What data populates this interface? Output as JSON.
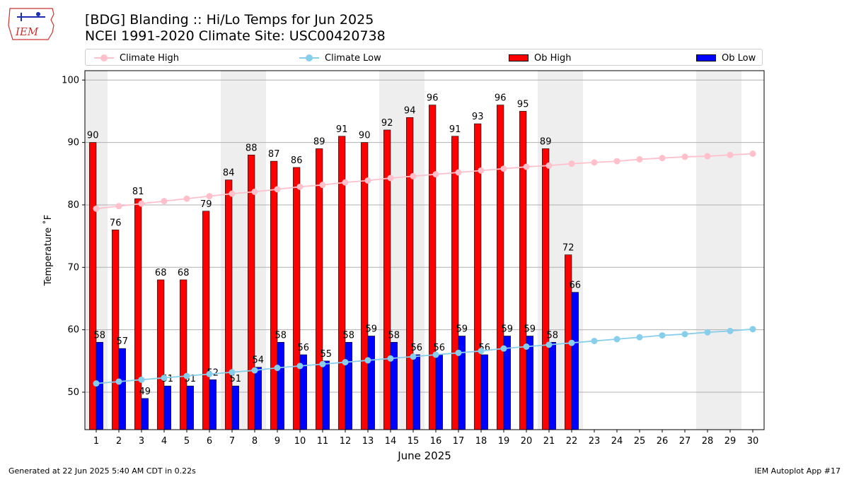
{
  "header": {
    "logo_text": "IEM",
    "title_line1": "[BDG] Blanding :: Hi/Lo Temps for Jun 2025",
    "title_line2": "NCEI 1991-2020 Climate Site: USC00420738"
  },
  "legend": {
    "climate_high": "Climate High",
    "climate_low": "Climate Low",
    "ob_high": "Ob High",
    "ob_low": "Ob Low"
  },
  "colors": {
    "ob_high": "#ff0000",
    "ob_low": "#0000ff",
    "climate_high": "#ffc0cb",
    "climate_low": "#87ceeb",
    "weekend_band": "#eeeeee",
    "grid": "#b0b0b0"
  },
  "chart_data": {
    "type": "bar",
    "xlabel": "June 2025",
    "ylabel": "Temperature ˚F",
    "ylim": [
      44,
      101.5
    ],
    "yticks": [
      50,
      60,
      70,
      80,
      90,
      100
    ],
    "grid": "horizontal",
    "legend_placement": "top",
    "categories": [
      "1",
      "2",
      "3",
      "4",
      "5",
      "6",
      "7",
      "8",
      "9",
      "10",
      "11",
      "12",
      "13",
      "14",
      "15",
      "16",
      "17",
      "18",
      "19",
      "20",
      "21",
      "22",
      "23",
      "24",
      "25",
      "26",
      "27",
      "28",
      "29",
      "30"
    ],
    "weekend_days": [
      1,
      7,
      8,
      14,
      15,
      21,
      22,
      28,
      29
    ],
    "series": [
      {
        "name": "Ob High",
        "kind": "bar",
        "values": [
          90,
          76,
          81,
          68,
          68,
          79,
          84,
          88,
          87,
          86,
          89,
          91,
          90,
          92,
          94,
          96,
          91,
          93,
          96,
          95,
          89,
          72,
          null,
          null,
          null,
          null,
          null,
          null,
          null,
          null
        ]
      },
      {
        "name": "Ob Low",
        "kind": "bar",
        "values": [
          58,
          57,
          49,
          51,
          51,
          52,
          51,
          54,
          58,
          56,
          55,
          58,
          59,
          58,
          56,
          56,
          59,
          56,
          59,
          59,
          58,
          66,
          null,
          null,
          null,
          null,
          null,
          null,
          null,
          null
        ]
      },
      {
        "name": "Climate High",
        "kind": "line",
        "values": [
          79.4,
          79.8,
          80.2,
          80.6,
          81.0,
          81.4,
          81.8,
          82.1,
          82.5,
          82.9,
          83.2,
          83.6,
          83.9,
          84.3,
          84.6,
          84.9,
          85.2,
          85.5,
          85.8,
          86.1,
          86.3,
          86.6,
          86.8,
          87.0,
          87.3,
          87.5,
          87.7,
          87.8,
          88.0,
          88.2
        ]
      },
      {
        "name": "Climate Low",
        "kind": "line",
        "values": [
          51.4,
          51.7,
          52.0,
          52.3,
          52.6,
          52.9,
          53.2,
          53.5,
          53.9,
          54.2,
          54.5,
          54.8,
          55.1,
          55.4,
          55.7,
          56.0,
          56.3,
          56.6,
          57.0,
          57.3,
          57.6,
          57.9,
          58.2,
          58.5,
          58.8,
          59.1,
          59.3,
          59.6,
          59.8,
          60.1
        ]
      }
    ]
  },
  "footer": {
    "left": "Generated at 22 Jun 2025 5:40 AM CDT in 0.22s",
    "right": "IEM Autoplot App #17"
  }
}
